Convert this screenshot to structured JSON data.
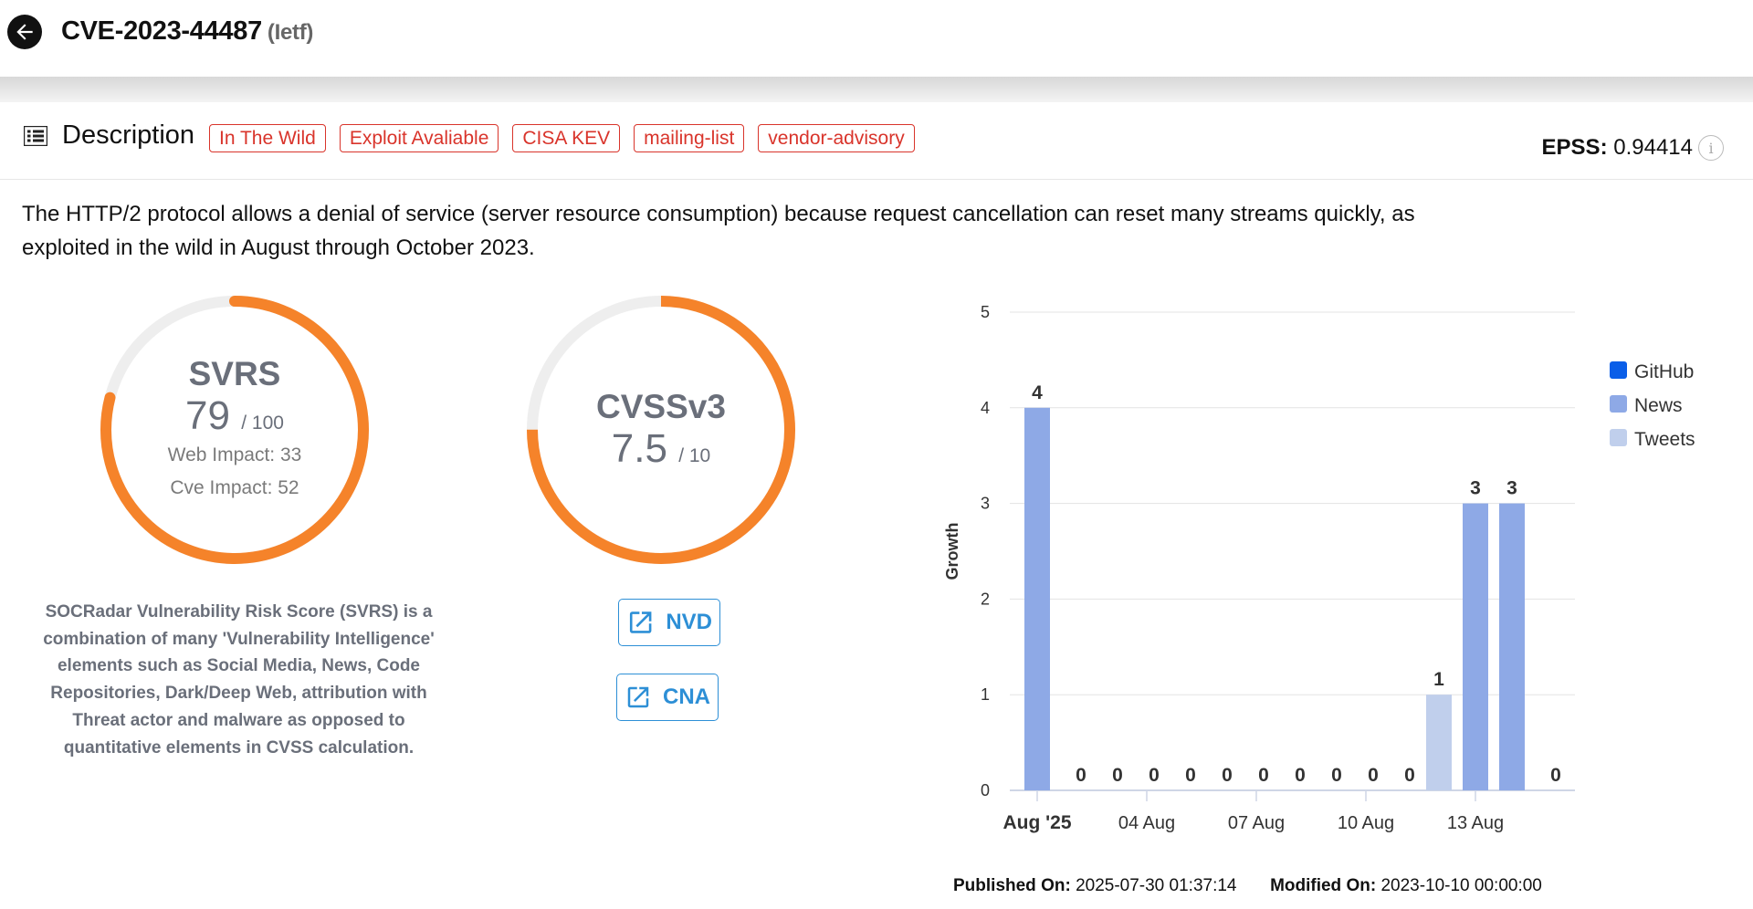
{
  "header": {
    "cve_id": "CVE-2023-44487",
    "source": "(Ietf)"
  },
  "description": {
    "label": "Description",
    "tags": [
      "In The Wild",
      "Exploit Avaliable",
      "CISA KEV",
      "mailing-list",
      "vendor-advisory"
    ],
    "epss_label": "EPSS:",
    "epss_value": "0.94414",
    "text": "The HTTP/2 protocol allows a denial of service (server resource consumption) because request cancellation can reset many streams quickly, as exploited in the wild in August through October 2023."
  },
  "svrs": {
    "title": "SVRS",
    "score": "79",
    "max": "/ 100",
    "fraction": 0.79,
    "web_impact": "Web Impact: 33",
    "cve_impact": "Cve Impact: 52",
    "color": "#f5832a"
  },
  "cvss": {
    "title": "CVSSv3",
    "score": "7.5",
    "max": "/ 10",
    "fraction": 0.75,
    "color": "#f5832a"
  },
  "svrs_note": "SOCRadar Vulnerability Risk Score (SVRS) is a combination of many 'Vulnerability Intelligence' elements such as Social Media, News, Code Repositories, Dark/Deep Web, attribution with Threat actor and malware as opposed to quantitative elements in CVSS calculation.",
  "links": {
    "nvd": "NVD",
    "cna": "CNA"
  },
  "chart_data": {
    "type": "bar",
    "ylabel": "Growth",
    "ylim": [
      0,
      5
    ],
    "yticks": [
      0,
      1,
      2,
      3,
      4,
      5
    ],
    "categories": [
      "Aug '25",
      "",
      "",
      "04 Aug",
      "",
      "",
      "07 Aug",
      "",
      "",
      "10 Aug",
      "",
      "",
      "13 Aug",
      "",
      ""
    ],
    "tick_labels": [
      "Aug '25",
      "04 Aug",
      "07 Aug",
      "10 Aug",
      "13 Aug"
    ],
    "series": [
      {
        "name": "GitHub",
        "color": "#0a5ee8",
        "values": [
          0,
          0,
          0,
          0,
          0,
          0,
          0,
          0,
          0,
          0,
          0,
          0,
          0,
          0,
          0
        ]
      },
      {
        "name": "News",
        "color": "#8ea9e6",
        "values": [
          4,
          0,
          0,
          0,
          0,
          0,
          0,
          0,
          0,
          0,
          0,
          0,
          3,
          3,
          0
        ]
      },
      {
        "name": "Tweets",
        "color": "#c0cfec",
        "values": [
          0,
          0,
          0,
          0,
          0,
          0,
          0,
          0,
          0,
          0,
          0,
          1,
          0,
          0,
          0
        ]
      }
    ],
    "totals": [
      4,
      0,
      0,
      0,
      0,
      0,
      0,
      0,
      0,
      0,
      0,
      1,
      3,
      3,
      0
    ],
    "legend_placement": "right",
    "grid": true
  },
  "footer": {
    "published_label": "Published On:",
    "published_value": "2025-07-30 01:37:14",
    "modified_label": "Modified On:",
    "modified_value": "2023-10-10 00:00:00"
  }
}
